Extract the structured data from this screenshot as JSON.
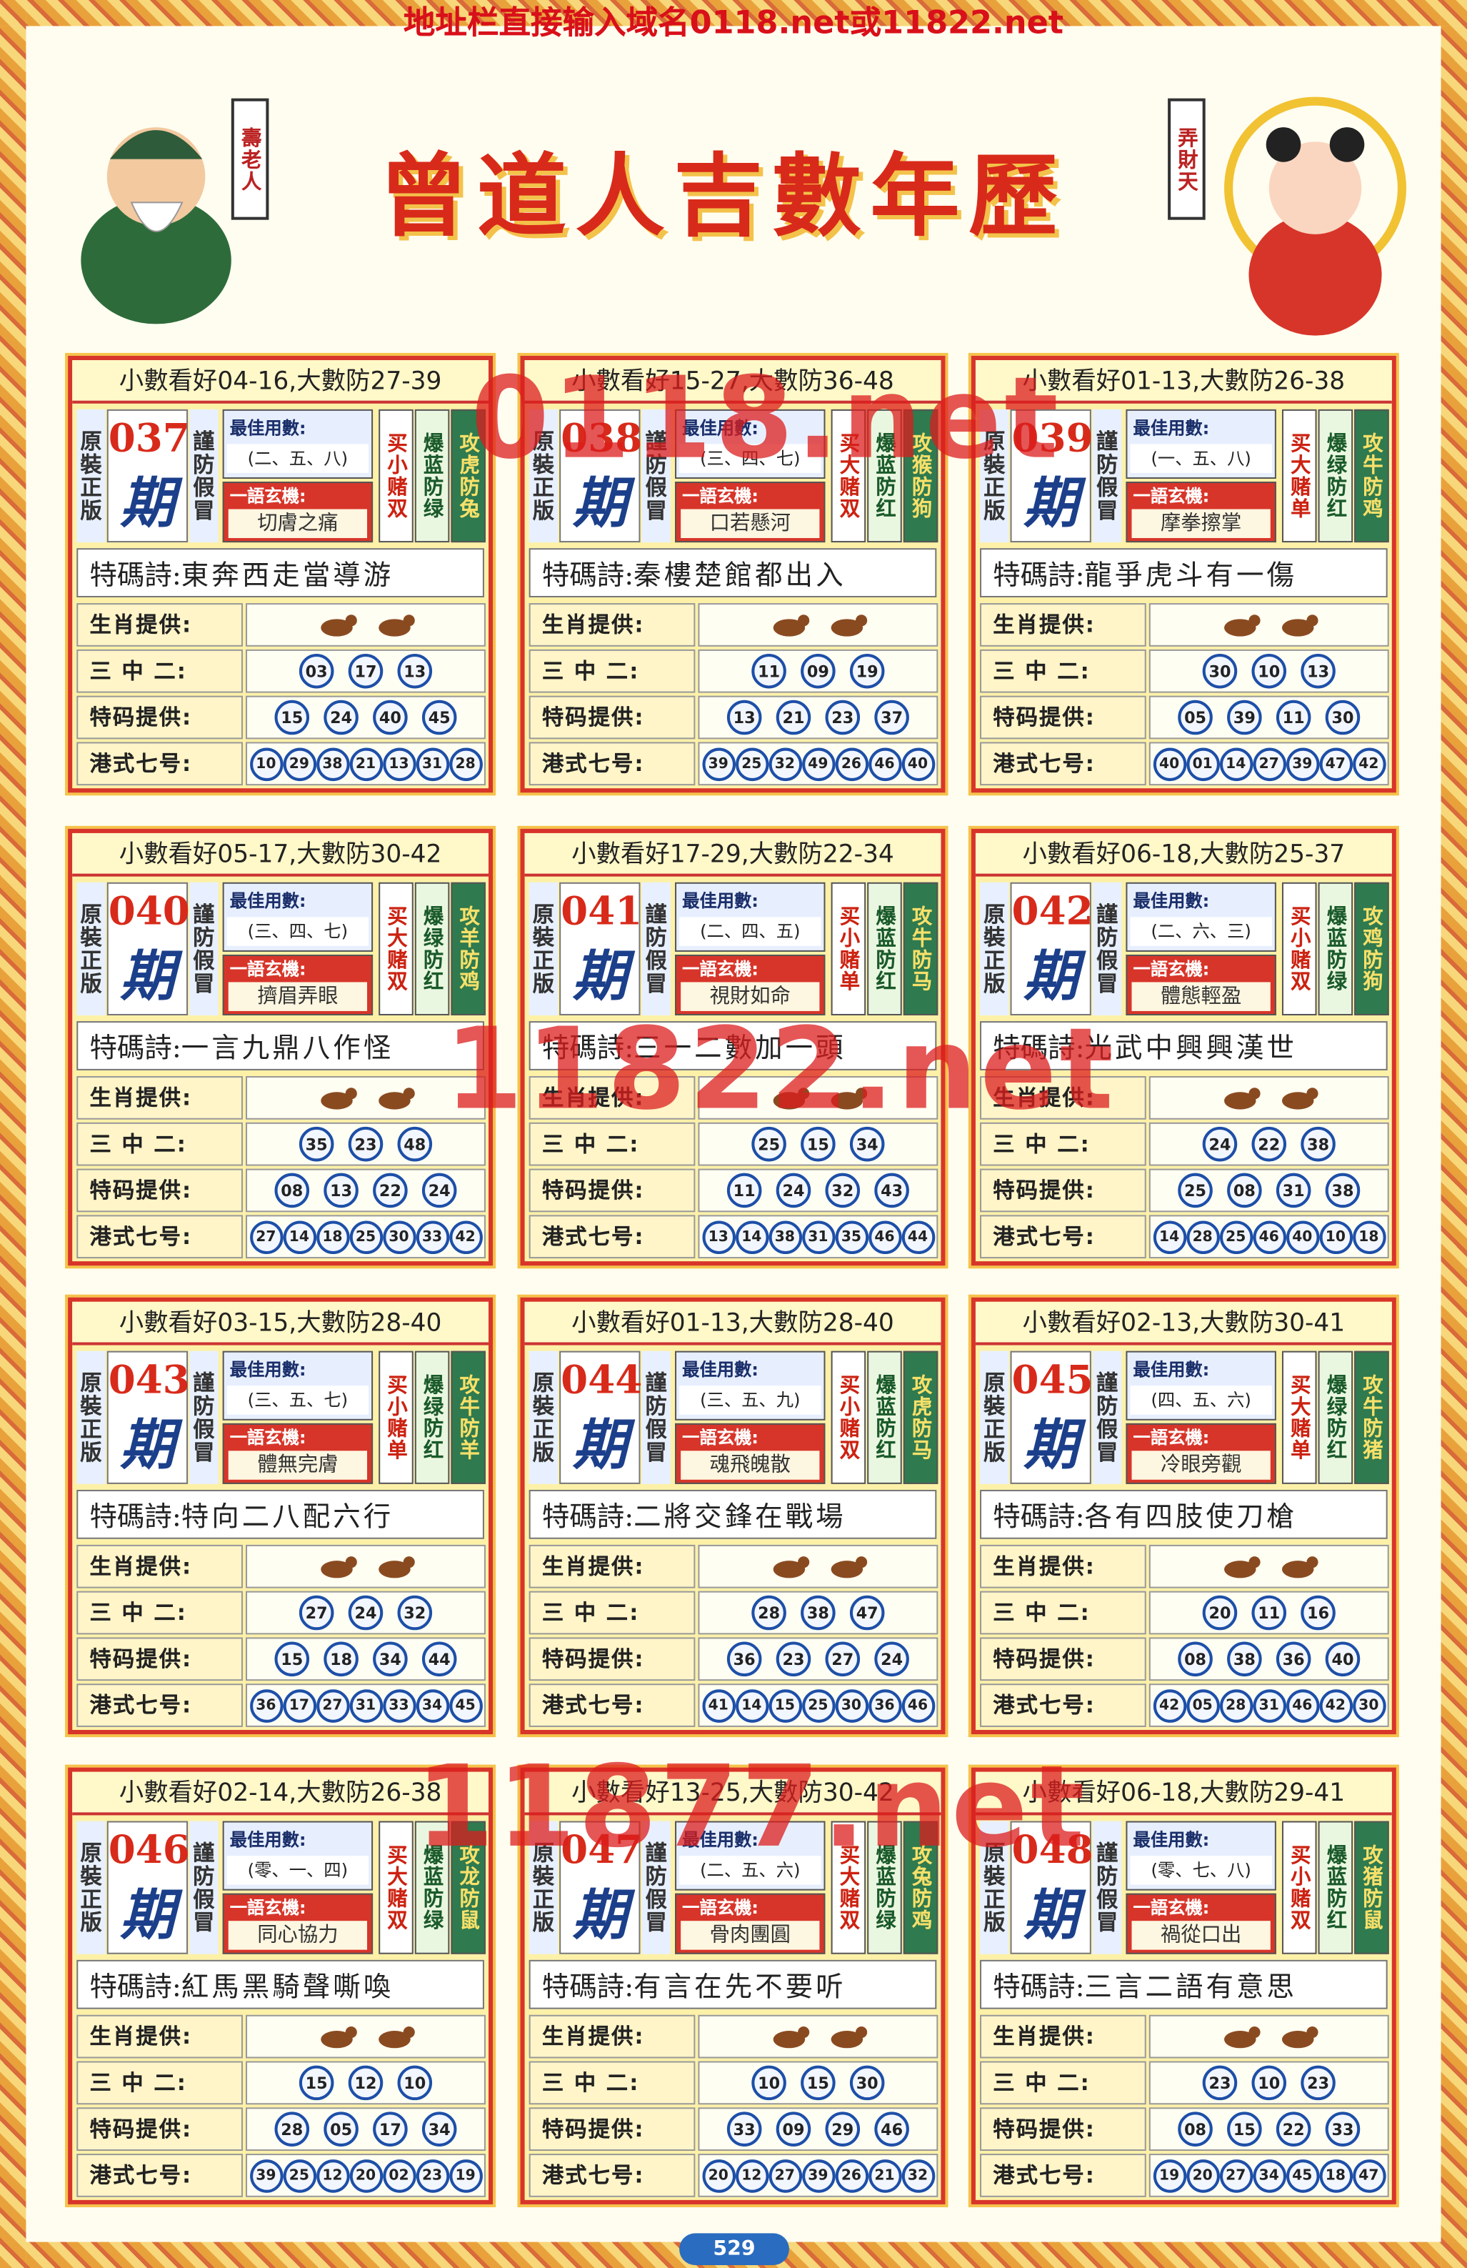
{
  "header": {
    "notice": "地址栏直接输入域名0118.net或11822.net",
    "title": "曾道人吉數年歷",
    "left_badge": "壽老人",
    "right_badge": "弄財天"
  },
  "labels": {
    "genuine": "原裝正版",
    "beware": "謹防假冒",
    "issue_suffix": "期",
    "best_numbers": "最佳用數:",
    "riddle": "一語玄機:",
    "poem": "特碼詩:",
    "zodiac": "生肖提供:",
    "three_two": "三 中 二:",
    "special": "特码提供:",
    "hk_seven": "港式七号:"
  },
  "watermarks": [
    "0118.net",
    "11822.net",
    "11877.net"
  ],
  "cards": [
    {
      "range": "小數看好04-16,大數防27-39",
      "issue": "037",
      "best": "(二、五、八)",
      "riddle": "切膚之痛",
      "bet": "买小赌双",
      "color": "爆蓝防绿",
      "zodiac_tip": "攻虎防兔",
      "poem": "東奔西走當導游",
      "three_two": [
        "03",
        "17",
        "13"
      ],
      "special": [
        "15",
        "24",
        "40",
        "45"
      ],
      "hk_seven": [
        "10",
        "29",
        "38",
        "21",
        "13",
        "31",
        "28"
      ]
    },
    {
      "range": "小數看好15-27,大數防36-48",
      "issue": "038",
      "best": "(三、四、七)",
      "riddle": "口若懸河",
      "bet": "买大赌双",
      "color": "爆蓝防红",
      "zodiac_tip": "攻猴防狗",
      "poem": "秦樓楚館都出入",
      "three_two": [
        "11",
        "09",
        "19"
      ],
      "special": [
        "13",
        "21",
        "23",
        "37"
      ],
      "hk_seven": [
        "39",
        "25",
        "32",
        "49",
        "26",
        "46",
        "40"
      ]
    },
    {
      "range": "小數看好01-13,大數防26-38",
      "issue": "039",
      "best": "(一、五、八)",
      "riddle": "摩拳擦掌",
      "bet": "买大赌单",
      "color": "爆绿防红",
      "zodiac_tip": "攻牛防鸡",
      "poem": "龍爭虎斗有一傷",
      "three_two": [
        "30",
        "10",
        "13"
      ],
      "special": [
        "05",
        "39",
        "11",
        "30"
      ],
      "hk_seven": [
        "40",
        "01",
        "14",
        "27",
        "39",
        "47",
        "42"
      ]
    },
    {
      "range": "小數看好05-17,大數防30-42",
      "issue": "040",
      "best": "(三、四、七)",
      "riddle": "擠眉弄眼",
      "bet": "买大赌双",
      "color": "爆绿防红",
      "zodiac_tip": "攻羊防鸡",
      "poem": "一言九鼎八作怪",
      "three_two": [
        "35",
        "23",
        "48"
      ],
      "special": [
        "08",
        "13",
        "22",
        "24"
      ],
      "hk_seven": [
        "27",
        "14",
        "18",
        "25",
        "30",
        "33",
        "42"
      ]
    },
    {
      "range": "小數看好17-29,大數防22-34",
      "issue": "041",
      "best": "(二、四、五)",
      "riddle": "視財如命",
      "bet": "买小赌单",
      "color": "爆蓝防红",
      "zodiac_tip": "攻牛防马",
      "poem": "三一二數加一頭",
      "three_two": [
        "25",
        "15",
        "34"
      ],
      "special": [
        "11",
        "24",
        "32",
        "43"
      ],
      "hk_seven": [
        "13",
        "14",
        "38",
        "31",
        "35",
        "46",
        "44"
      ]
    },
    {
      "range": "小數看好06-18,大數防25-37",
      "issue": "042",
      "best": "(二、六、三)",
      "riddle": "體態輕盈",
      "bet": "买小赌双",
      "color": "爆蓝防绿",
      "zodiac_tip": "攻鸡防狗",
      "poem": "光武中興興漢世",
      "three_two": [
        "24",
        "22",
        "38"
      ],
      "special": [
        "25",
        "08",
        "31",
        "38"
      ],
      "hk_seven": [
        "14",
        "28",
        "25",
        "46",
        "40",
        "10",
        "18"
      ]
    },
    {
      "range": "小數看好03-15,大數防28-40",
      "issue": "043",
      "best": "(三、五、七)",
      "riddle": "體無完膚",
      "bet": "买小赌单",
      "color": "爆绿防红",
      "zodiac_tip": "攻牛防羊",
      "poem": "特向二八配六行",
      "three_two": [
        "27",
        "24",
        "32"
      ],
      "special": [
        "15",
        "18",
        "34",
        "44"
      ],
      "hk_seven": [
        "36",
        "17",
        "27",
        "31",
        "33",
        "34",
        "45"
      ]
    },
    {
      "range": "小數看好01-13,大數防28-40",
      "issue": "044",
      "best": "(三、五、九)",
      "riddle": "魂飛魄散",
      "bet": "买小赌双",
      "color": "爆蓝防红",
      "zodiac_tip": "攻虎防马",
      "poem": "二將交鋒在戰場",
      "three_two": [
        "28",
        "38",
        "47"
      ],
      "special": [
        "36",
        "23",
        "27",
        "24"
      ],
      "hk_seven": [
        "41",
        "14",
        "15",
        "25",
        "30",
        "36",
        "46"
      ]
    },
    {
      "range": "小數看好02-13,大數防30-41",
      "issue": "045",
      "best": "(四、五、六)",
      "riddle": "冷眼旁觀",
      "bet": "买大赌单",
      "color": "爆绿防红",
      "zodiac_tip": "攻牛防猪",
      "poem": "各有四肢使刀槍",
      "three_two": [
        "20",
        "11",
        "16"
      ],
      "special": [
        "08",
        "38",
        "36",
        "40"
      ],
      "hk_seven": [
        "42",
        "05",
        "28",
        "31",
        "46",
        "42",
        "30"
      ]
    },
    {
      "range": "小數看好02-14,大數防26-38",
      "issue": "046",
      "best": "(零、一、四)",
      "riddle": "同心協力",
      "bet": "买大赌双",
      "color": "爆蓝防绿",
      "zodiac_tip": "攻龙防鼠",
      "poem": "紅馬黑騎聲嘶喚",
      "three_two": [
        "15",
        "12",
        "10"
      ],
      "special": [
        "28",
        "05",
        "17",
        "34"
      ],
      "hk_seven": [
        "39",
        "25",
        "12",
        "20",
        "02",
        "23",
        "19"
      ]
    },
    {
      "range": "小數看好13-25,大數防30-42",
      "issue": "047",
      "best": "(二、五、六)",
      "riddle": "骨肉團圓",
      "bet": "买大赌双",
      "color": "爆蓝防绿",
      "zodiac_tip": "攻兔防鸡",
      "poem": "有言在先不要听",
      "three_two": [
        "10",
        "15",
        "30"
      ],
      "special": [
        "33",
        "09",
        "29",
        "46"
      ],
      "hk_seven": [
        "20",
        "12",
        "27",
        "39",
        "26",
        "21",
        "32"
      ]
    },
    {
      "range": "小數看好06-18,大數防29-41",
      "issue": "048",
      "best": "(零、七、八)",
      "riddle": "禍從口出",
      "bet": "买小赌双",
      "color": "爆蓝防红",
      "zodiac_tip": "攻猪防鼠",
      "poem": "三言二語有意思",
      "three_two": [
        "23",
        "10",
        "23"
      ],
      "special": [
        "08",
        "15",
        "22",
        "33"
      ],
      "hk_seven": [
        "19",
        "20",
        "27",
        "34",
        "45",
        "18",
        "47"
      ]
    }
  ],
  "footer": {
    "page": "529"
  }
}
